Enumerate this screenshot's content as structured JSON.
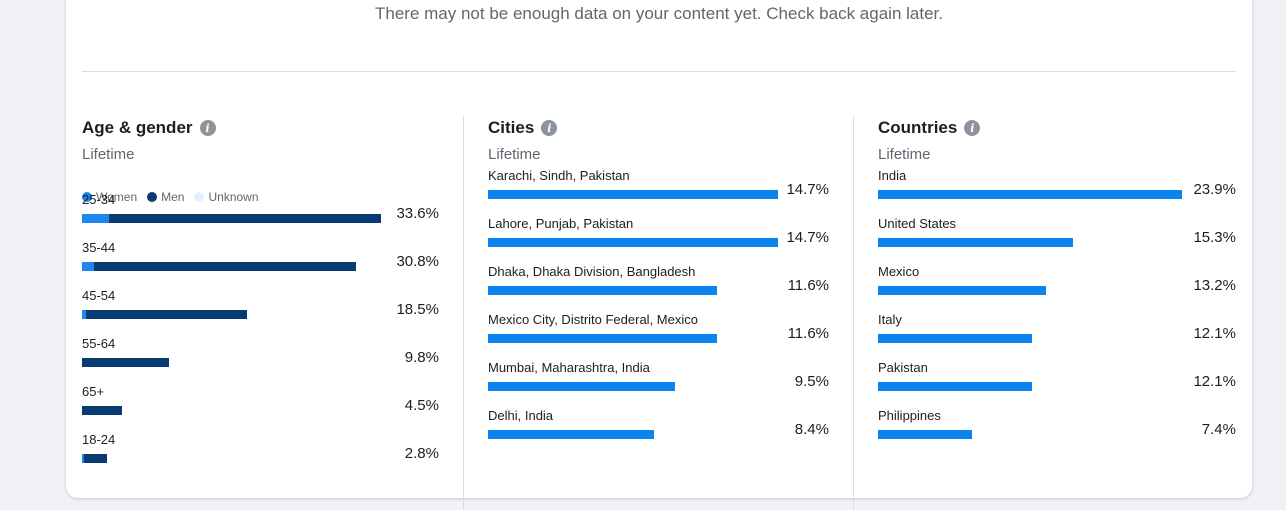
{
  "message": "There may not be enough data on your content yet. Check back again later.",
  "colors": {
    "women": "#1c86ee",
    "men": "#0a3a72",
    "unknown": "#e4f0fb",
    "bar": "#0b84ee"
  },
  "age_gender": {
    "title": "Age & gender",
    "subtitle": "Lifetime",
    "legend": [
      "Women",
      "Men",
      "Unknown"
    ]
  },
  "cities": {
    "title": "Cities",
    "subtitle": "Lifetime"
  },
  "countries": {
    "title": "Countries",
    "subtitle": "Lifetime"
  },
  "chart_data": [
    {
      "type": "bar",
      "title": "Age & gender",
      "categories": [
        "25-34",
        "35-44",
        "45-54",
        "55-64",
        "65+",
        "18-24"
      ],
      "series": [
        {
          "name": "Women",
          "values": [
            3.0,
            1.4,
            0.4,
            0.0,
            0.0,
            0.2
          ]
        },
        {
          "name": "Men",
          "values": [
            30.6,
            29.4,
            18.1,
            9.8,
            4.5,
            2.6
          ]
        },
        {
          "name": "Unknown",
          "values": [
            0,
            0,
            0,
            0,
            0,
            0
          ]
        }
      ],
      "totals": [
        "33.6%",
        "30.8%",
        "18.5%",
        "9.8%",
        "4.5%",
        "2.8%"
      ],
      "xlim": [
        0,
        33.6
      ]
    },
    {
      "type": "bar",
      "title": "Cities",
      "categories": [
        "Karachi, Sindh, Pakistan",
        "Lahore, Punjab, Pakistan",
        "Dhaka, Dhaka Division, Bangladesh",
        "Mexico City, Distrito Federal, Mexico",
        "Mumbai, Maharashtra, India",
        "Delhi, India"
      ],
      "values": [
        14.7,
        14.7,
        11.6,
        11.6,
        9.5,
        8.4
      ],
      "labels": [
        "14.7%",
        "14.7%",
        "11.6%",
        "11.6%",
        "9.5%",
        "8.4%"
      ],
      "xlim": [
        0,
        14.7
      ]
    },
    {
      "type": "bar",
      "title": "Countries",
      "categories": [
        "India",
        "United States",
        "Mexico",
        "Italy",
        "Pakistan",
        "Philippines"
      ],
      "values": [
        23.9,
        15.3,
        13.2,
        12.1,
        12.1,
        7.4
      ],
      "labels": [
        "23.9%",
        "15.3%",
        "13.2%",
        "12.1%",
        "12.1%",
        "7.4%"
      ],
      "xlim": [
        0,
        23.9
      ]
    }
  ]
}
